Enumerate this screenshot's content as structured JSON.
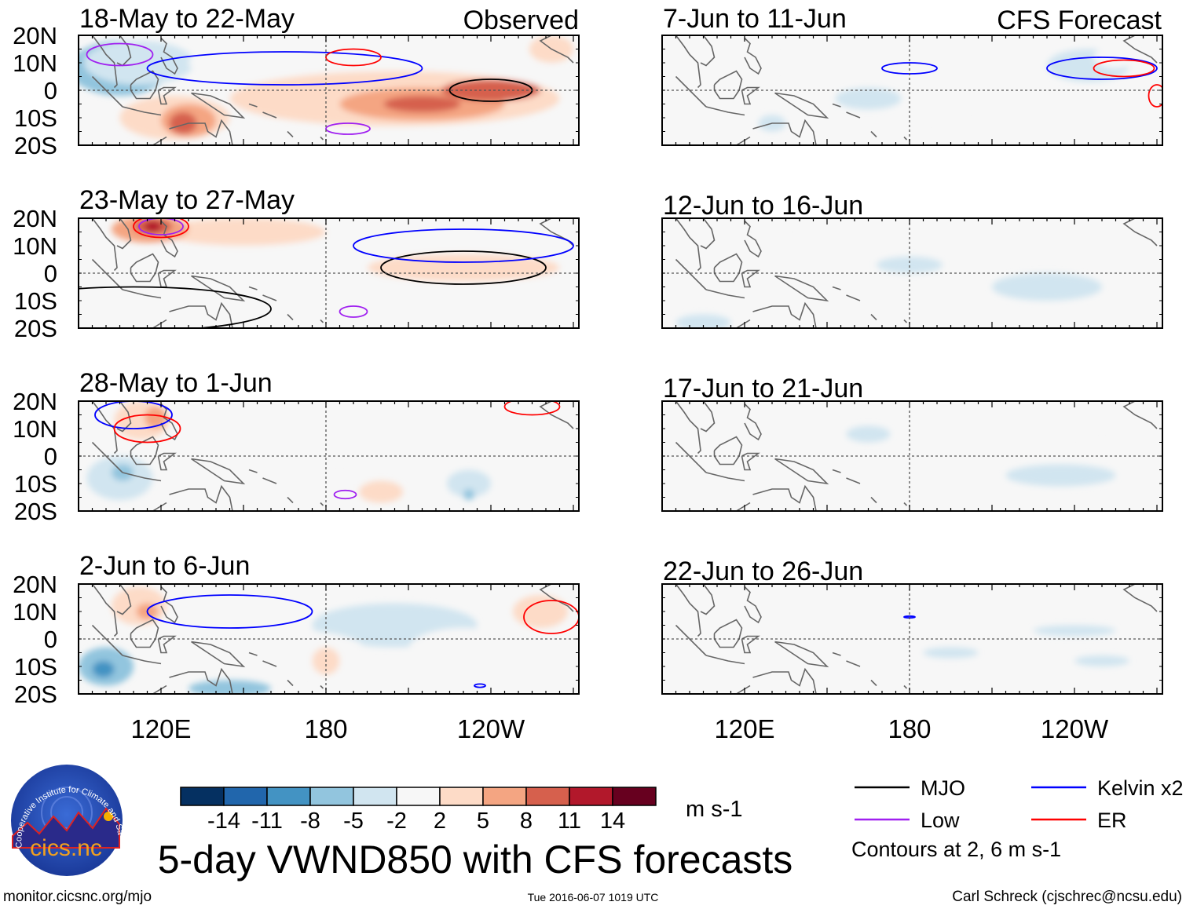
{
  "chart_data": {
    "type": "heatmap",
    "title": "5-day VWND850 with CFS forecasts",
    "variable": "850 hPa meridional wind anomaly",
    "units": "m s-1",
    "column_labels": {
      "left": "Observed",
      "right": "CFS Forecast"
    },
    "lat_ticks": [
      "20N",
      "10N",
      "0",
      "10S",
      "20S"
    ],
    "lat_range": [
      -20,
      20
    ],
    "lon_range": [
      90,
      270
    ],
    "lon_ticks": [
      {
        "lon": 120,
        "label": "120E"
      },
      {
        "lon": 180,
        "label": "180"
      },
      {
        "lon": 240,
        "label": "120W"
      }
    ],
    "colorbar": {
      "levels": [
        "-14",
        "-11",
        "-8",
        "-5",
        "-2",
        "2",
        "5",
        "8",
        "11",
        "14"
      ],
      "colors": [
        "#053061",
        "#2166ac",
        "#4393c3",
        "#92c5de",
        "#d1e5f0",
        "#f7f7f7",
        "#fddbc7",
        "#f4a582",
        "#d6604d",
        "#b2182b",
        "#67001f"
      ],
      "units": "m s-1"
    },
    "legend": [
      {
        "label": "MJO",
        "color": "#000000"
      },
      {
        "label": "Kelvin x2",
        "color": "#0000ff"
      },
      {
        "label": "Low",
        "color": "#a020f0"
      },
      {
        "label": "ER",
        "color": "#ff0000"
      }
    ],
    "contour_note": "Contours at 2, 6 m s-1",
    "panels": [
      {
        "title": "18-May to 22-May",
        "column": "left",
        "row": 0,
        "anomalies": [
          [
            200,
            2,
            70,
            14,
            2
          ],
          [
            205,
            -3,
            60,
            10,
            5
          ],
          [
            215,
            -5,
            30,
            6,
            8
          ],
          [
            240,
            0,
            18,
            4,
            11
          ],
          [
            215,
            -5,
            14,
            3,
            11
          ],
          [
            125,
            -10,
            20,
            8,
            5
          ],
          [
            130,
            -11,
            10,
            6,
            8
          ],
          [
            128,
            -12,
            5,
            4,
            11
          ],
          [
            97,
            8,
            10,
            8,
            -8
          ],
          [
            105,
            8,
            18,
            10,
            -5
          ],
          [
            112,
            10,
            20,
            8,
            -2
          ],
          [
            150,
            10,
            20,
            5,
            2
          ],
          [
            262,
            15,
            8,
            5,
            5
          ]
        ],
        "contours": [
          [
            240,
            0,
            15,
            4,
            "MJO"
          ],
          [
            165,
            8,
            50,
            6,
            "Kelvin x2"
          ],
          [
            190,
            12,
            10,
            3,
            "ER"
          ],
          [
            188,
            -14,
            8,
            2,
            "Low"
          ],
          [
            105,
            13,
            12,
            4,
            "Low"
          ]
        ]
      },
      {
        "title": "23-May to 27-May",
        "column": "left",
        "row": 1,
        "anomalies": [
          [
            190,
            3,
            80,
            15,
            2
          ],
          [
            150,
            15,
            30,
            5,
            5
          ],
          [
            116,
            16,
            14,
            5,
            8
          ],
          [
            117,
            17,
            7,
            3,
            11
          ],
          [
            117,
            17,
            3,
            2,
            14
          ],
          [
            230,
            2,
            35,
            5,
            5
          ],
          [
            140,
            -12,
            15,
            5,
            2
          ],
          [
            200,
            -12,
            30,
            5,
            2
          ]
        ],
        "contours": [
          [
            230,
            2,
            30,
            6,
            "MJO"
          ],
          [
            230,
            10,
            40,
            6,
            "Kelvin x2"
          ],
          [
            120,
            17,
            10,
            4,
            "ER"
          ],
          [
            120,
            17,
            8,
            3,
            "Low"
          ],
          [
            190,
            -14,
            5,
            2,
            "Low"
          ],
          [
            110,
            -13,
            50,
            8,
            "MJO"
          ]
        ]
      },
      {
        "title": "28-May to 1-Jun",
        "column": "left",
        "row": 2,
        "anomalies": [
          [
            113,
            13,
            10,
            7,
            5
          ],
          [
            118,
            14,
            4,
            4,
            8
          ],
          [
            105,
            -8,
            12,
            8,
            -2
          ],
          [
            106,
            -6,
            4,
            3,
            -5
          ],
          [
            185,
            -12,
            12,
            5,
            2
          ],
          [
            200,
            -13,
            8,
            4,
            5
          ],
          [
            232,
            -10,
            8,
            5,
            -2
          ],
          [
            232,
            -14,
            2,
            2,
            -5
          ]
        ],
        "contours": [
          [
            110,
            15,
            14,
            5,
            "Kelvin x2"
          ],
          [
            115,
            10,
            12,
            5,
            "ER"
          ],
          [
            187,
            -14,
            4,
            1.5,
            "Low"
          ],
          [
            255,
            18,
            10,
            3,
            "ER"
          ]
        ]
      },
      {
        "title": "2-Jun to 6-Jun",
        "column": "left",
        "row": 3,
        "anomalies": [
          [
            112,
            12,
            10,
            7,
            5
          ],
          [
            115,
            10,
            4,
            3,
            8
          ],
          [
            100,
            -10,
            10,
            7,
            -5
          ],
          [
            99,
            -11,
            4,
            3,
            -8
          ],
          [
            205,
            5,
            30,
            8,
            -2
          ],
          [
            170,
            -5,
            25,
            8,
            2
          ],
          [
            180,
            -8,
            5,
            5,
            5
          ],
          [
            258,
            10,
            10,
            6,
            5
          ],
          [
            230,
            -4,
            20,
            8,
            2
          ],
          [
            145,
            -18,
            15,
            3,
            -5
          ]
        ],
        "contours": [
          [
            145,
            10,
            30,
            6,
            "Kelvin x2"
          ],
          [
            262,
            8,
            10,
            6,
            "ER"
          ],
          [
            236,
            -17,
            2,
            0.6,
            "Kelvin x2"
          ]
        ]
      },
      {
        "title": "7-Jun to 11-Jun",
        "column": "right",
        "row": 0,
        "anomalies": [
          [
            245,
            9,
            15,
            6,
            -2
          ],
          [
            255,
            12,
            8,
            4,
            2
          ],
          [
            165,
            -3,
            12,
            4,
            -2
          ],
          [
            190,
            -8,
            10,
            3,
            2
          ],
          [
            230,
            -12,
            15,
            4,
            2
          ],
          [
            130,
            -12,
            5,
            3,
            -2
          ],
          [
            128,
            10,
            4,
            4,
            2
          ]
        ],
        "contours": [
          [
            250,
            8,
            20,
            4,
            "Kelvin x2"
          ],
          [
            180,
            8,
            10,
            2,
            "Kelvin x2"
          ],
          [
            258,
            8,
            11,
            3,
            "ER"
          ],
          [
            270,
            -2,
            3,
            4,
            "ER"
          ]
        ]
      },
      {
        "title": "12-Jun to 16-Jun",
        "column": "right",
        "row": 1,
        "anomalies": [
          [
            230,
            -5,
            20,
            5,
            -2
          ],
          [
            180,
            3,
            12,
            3,
            -2
          ],
          [
            220,
            15,
            12,
            3,
            2
          ],
          [
            172,
            -15,
            8,
            3,
            2
          ],
          [
            130,
            15,
            5,
            5,
            2
          ],
          [
            105,
            -18,
            10,
            3,
            -2
          ]
        ],
        "contours": []
      },
      {
        "title": "17-Jun to 21-Jun",
        "column": "right",
        "row": 2,
        "anomalies": [
          [
            235,
            -7,
            20,
            4,
            -2
          ],
          [
            165,
            8,
            8,
            3,
            -2
          ],
          [
            250,
            2,
            8,
            3,
            2
          ],
          [
            225,
            -17,
            12,
            3,
            2
          ],
          [
            262,
            8,
            5,
            3,
            2
          ]
        ],
        "contours": []
      },
      {
        "title": "22-Jun to 26-Jun",
        "column": "right",
        "row": 3,
        "anomalies": [
          [
            240,
            3,
            15,
            2,
            -2
          ],
          [
            195,
            -5,
            10,
            2,
            -2
          ],
          [
            250,
            -8,
            10,
            2,
            -2
          ]
        ],
        "contours": [
          [
            180,
            8,
            2,
            0.3,
            "Kelvin x2"
          ]
        ]
      }
    ]
  },
  "logo": {
    "text": "cics.nc",
    "arc_text": "Cooperative Institute for Climate and Satellites"
  },
  "footer": {
    "url": "monitor.cicsnc.org/mjo",
    "timestamp": "Tue 2016-06-07 1019 UTC",
    "author": "Carl Schreck (cjschrec@ncsu.edu)"
  }
}
